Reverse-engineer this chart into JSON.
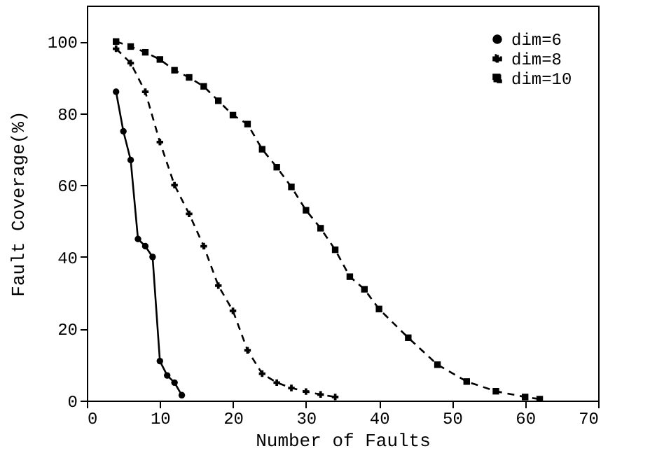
{
  "chart_data": {
    "type": "line",
    "xlabel": "Number of Faults",
    "ylabel": "Fault Coverage(%)",
    "xlim": [
      0,
      70
    ],
    "xticks": [
      0,
      10,
      20,
      30,
      40,
      50,
      60,
      70
    ],
    "ylim": [
      0,
      110
    ],
    "yticks": [
      0,
      20,
      40,
      60,
      80,
      100
    ],
    "grid": false,
    "legend": "top right",
    "series": [
      {
        "name": "dim=6",
        "color": "#000000",
        "marker": "circle",
        "line_style": "solid",
        "x": [
          4,
          5,
          6,
          7,
          8,
          9,
          10,
          11,
          12,
          13
        ],
        "values": [
          86,
          75,
          67,
          45,
          43,
          40,
          11,
          7,
          5,
          1.5
        ]
      },
      {
        "name": "dim=8",
        "color": "#000000",
        "marker": "cross",
        "line_style": "dashed",
        "x": [
          4,
          6,
          8,
          10,
          12,
          14,
          16,
          18,
          20,
          22,
          24,
          26,
          28,
          30,
          32,
          34
        ],
        "values": [
          98,
          94,
          86,
          72,
          60,
          52,
          43,
          32,
          25,
          14,
          7.5,
          5,
          3.5,
          2.5,
          1.7,
          1
        ]
      },
      {
        "name": "dim=10",
        "color": "#000000",
        "marker": "square",
        "line_style": "dashed",
        "x": [
          4,
          6,
          8,
          10,
          12,
          14,
          16,
          18,
          20,
          22,
          24,
          26,
          28,
          30,
          32,
          34,
          36,
          38,
          40,
          44,
          48,
          52,
          56,
          60,
          62
        ],
        "values": [
          100,
          98.6,
          97,
          95,
          92,
          90,
          87.5,
          83.5,
          79.5,
          77,
          70,
          65,
          59.5,
          53,
          48,
          42,
          34.5,
          31,
          25.5,
          17.5,
          10,
          5.3,
          2.6,
          1,
          0.4
        ]
      }
    ]
  }
}
